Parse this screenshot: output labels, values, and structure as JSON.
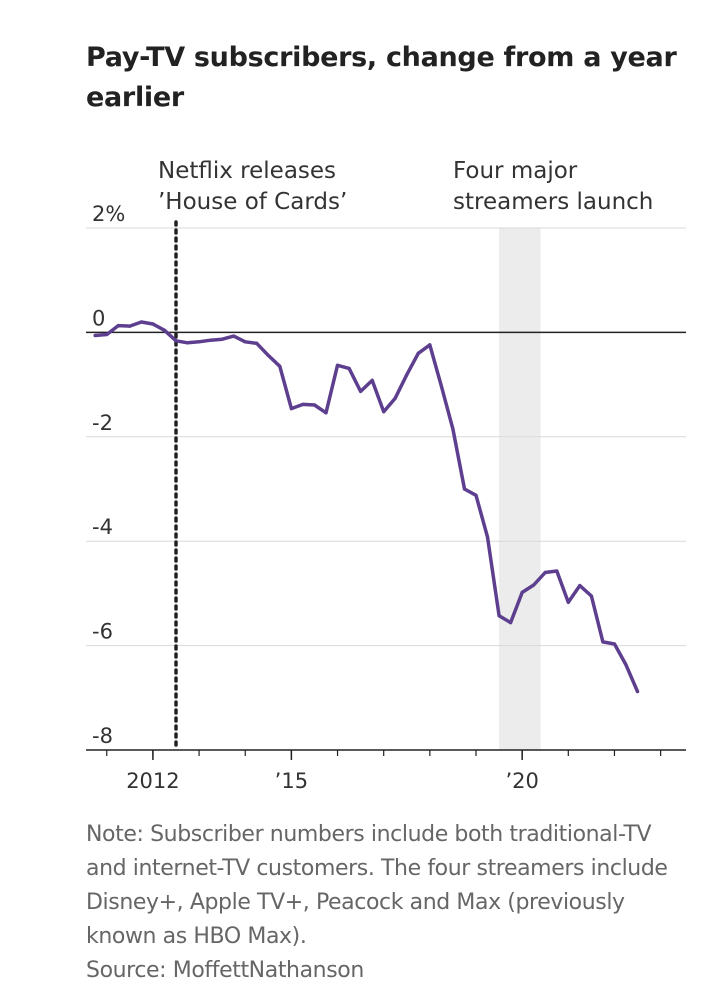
{
  "title": "Pay-TV subscribers, change from a year earlier",
  "note": "Note: Subscriber numbers include both traditional-TV and internet-TV customers. The four streamers include Disney+, Apple TV+, Peacock and Max (previously known as HBO Max).",
  "source": "Source: MoffettNathanson",
  "colors": {
    "line": "#5e3f8f",
    "grid": "#d9d9d9",
    "zero_line": "#222222",
    "shade": "#ececec",
    "text": "#333333"
  },
  "chart_data": {
    "type": "line",
    "title": "Pay-TV subscribers, change from a year earlier",
    "xlabel": "",
    "ylabel": "",
    "unit": "%",
    "xlim": [
      2010.55,
      2023.55
    ],
    "ylim": [
      -8,
      2
    ],
    "y_ticks": [
      {
        "value": 2,
        "label": "2%"
      },
      {
        "value": 0,
        "label": "0"
      },
      {
        "value": -2,
        "label": "-2"
      },
      {
        "value": -4,
        "label": "-4"
      },
      {
        "value": -6,
        "label": "-6"
      },
      {
        "value": -8,
        "label": "-8"
      }
    ],
    "x_ticks_minor": [
      2011,
      2012,
      2013,
      2014,
      2015,
      2016,
      2017,
      2018,
      2019,
      2020,
      2021,
      2022,
      2023
    ],
    "x_tick_labels": [
      {
        "value": 2012,
        "label": "2012"
      },
      {
        "value": 2015,
        "label": "’15"
      },
      {
        "value": 2020,
        "label": "’20"
      }
    ],
    "grid": true,
    "series": [
      {
        "values": [
          [
            2010.75,
            -0.06
          ],
          [
            2011.0,
            -0.04
          ],
          [
            2011.25,
            0.13
          ],
          [
            2011.5,
            0.12
          ],
          [
            2011.75,
            0.2
          ],
          [
            2012.0,
            0.16
          ],
          [
            2012.25,
            0.04
          ],
          [
            2012.5,
            -0.16
          ],
          [
            2012.75,
            -0.2
          ],
          [
            2013.0,
            -0.18
          ],
          [
            2013.25,
            -0.15
          ],
          [
            2013.5,
            -0.13
          ],
          [
            2013.75,
            -0.07
          ],
          [
            2014.0,
            -0.18
          ],
          [
            2014.25,
            -0.21
          ],
          [
            2014.5,
            -0.44
          ],
          [
            2014.75,
            -0.65
          ],
          [
            2015.0,
            -1.46
          ],
          [
            2015.25,
            -1.38
          ],
          [
            2015.5,
            -1.39
          ],
          [
            2015.75,
            -1.54
          ],
          [
            2016.0,
            -0.63
          ],
          [
            2016.25,
            -0.69
          ],
          [
            2016.5,
            -1.13
          ],
          [
            2016.75,
            -0.92
          ],
          [
            2017.0,
            -1.52
          ],
          [
            2017.25,
            -1.26
          ],
          [
            2017.5,
            -0.81
          ],
          [
            2017.75,
            -0.4
          ],
          [
            2018.0,
            -0.24
          ],
          [
            2018.25,
            -1.03
          ],
          [
            2018.5,
            -1.85
          ],
          [
            2018.75,
            -3.0
          ],
          [
            2019.0,
            -3.12
          ],
          [
            2019.25,
            -3.92
          ],
          [
            2019.5,
            -5.43
          ],
          [
            2019.75,
            -5.56
          ],
          [
            2020.0,
            -4.98
          ],
          [
            2020.25,
            -4.84
          ],
          [
            2020.5,
            -4.6
          ],
          [
            2020.75,
            -4.57
          ],
          [
            2021.0,
            -5.17
          ],
          [
            2021.25,
            -4.85
          ],
          [
            2021.5,
            -5.05
          ],
          [
            2021.75,
            -5.93
          ],
          [
            2022.0,
            -5.97
          ],
          [
            2022.25,
            -6.37
          ],
          [
            2022.5,
            -6.88
          ]
        ]
      }
    ],
    "annotations": [
      {
        "type": "vline",
        "x": 2012.5,
        "style": "dotted",
        "label": [
          "Netflix releases",
          "’House of Cards’"
        ]
      },
      {
        "type": "band",
        "x_start": 2019.5,
        "x_end": 2020.4,
        "label": [
          "Four major",
          "streamers launch"
        ]
      }
    ]
  }
}
